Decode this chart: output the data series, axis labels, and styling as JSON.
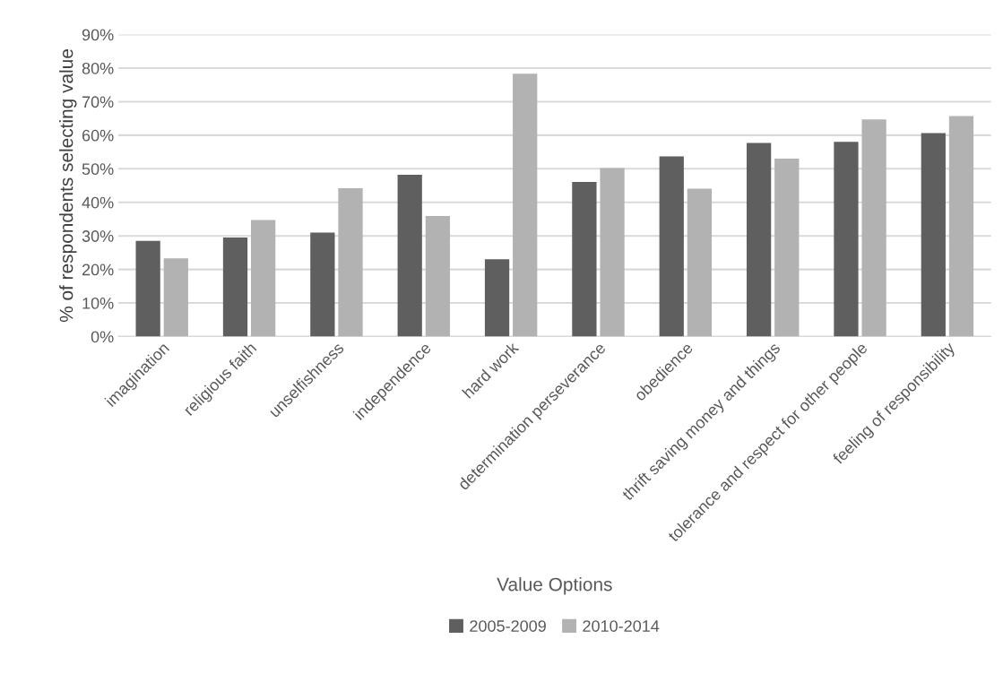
{
  "chart_data": {
    "type": "bar",
    "xlabel": "Value Options",
    "ylabel": "% of respondents selecting value",
    "categories": [
      "imagination",
      "religious faith",
      "unselfishness",
      "independence",
      "hard work",
      "determination perseverance",
      "obedience",
      "thrift saving money and things",
      "tolerance and respect for other people",
      "feeling of responsibility"
    ],
    "series": [
      {
        "name": "2005-2009",
        "color": "#5f5f5f",
        "values": [
          28.5,
          29.5,
          31,
          48.2,
          23,
          46.1,
          53.7,
          57.7,
          58,
          60.6
        ]
      },
      {
        "name": "2010-2014",
        "color": "#b2b2b2",
        "values": [
          23.3,
          34.7,
          44.2,
          35.9,
          78.3,
          50.2,
          44.1,
          53,
          64.7,
          65.7
        ]
      }
    ],
    "ylim": [
      0,
      90
    ],
    "yticks": [
      {
        "value": 0,
        "label": "0%"
      },
      {
        "value": 10,
        "label": "10%"
      },
      {
        "value": 20,
        "label": "20%"
      },
      {
        "value": 30,
        "label": "30%"
      },
      {
        "value": 40,
        "label": "40%"
      },
      {
        "value": 50,
        "label": "50%"
      },
      {
        "value": 60,
        "label": "60%"
      },
      {
        "value": 70,
        "label": "70%"
      },
      {
        "value": 80,
        "label": "80%"
      },
      {
        "value": 90,
        "label": "90%"
      }
    ],
    "grid": "y",
    "legend": "bottom"
  }
}
